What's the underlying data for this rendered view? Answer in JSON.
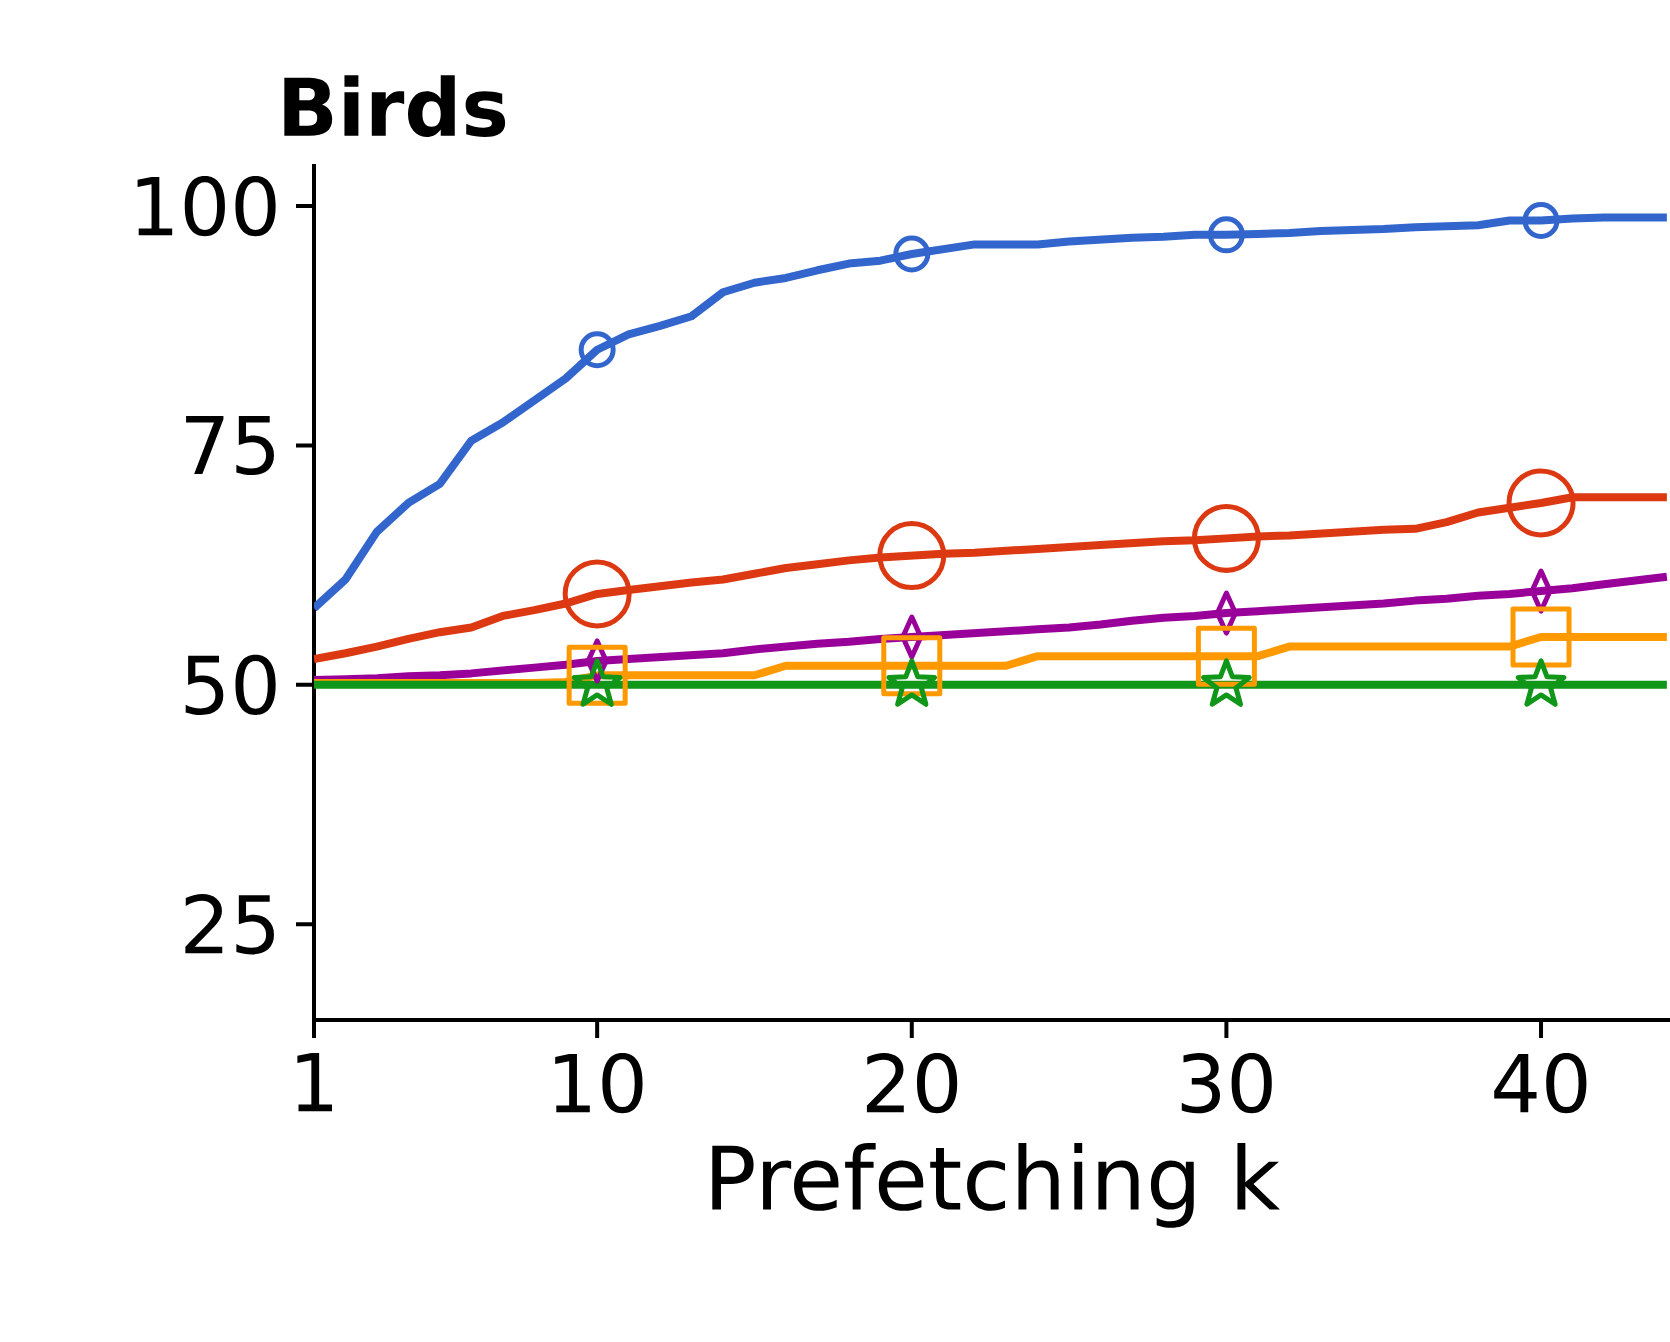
{
  "chart_data": {
    "type": "line",
    "title": "Birds",
    "xlabel": "Prefetching k",
    "x": [
      1,
      2,
      3,
      4,
      5,
      6,
      7,
      8,
      9,
      10,
      11,
      12,
      13,
      14,
      15,
      16,
      17,
      18,
      19,
      20,
      21,
      22,
      23,
      24,
      25,
      26,
      27,
      28,
      29,
      30,
      31,
      32,
      33,
      34,
      35,
      36,
      37,
      38,
      39,
      40,
      41,
      42,
      43,
      44
    ],
    "xlim": [
      1,
      44.1
    ],
    "xticks": [
      1,
      10,
      20,
      30,
      40
    ],
    "ylim": [
      15,
      104.4
    ],
    "yticks": [
      25,
      50,
      75,
      100
    ],
    "grid": false,
    "line_style": "solid",
    "series": [
      {
        "color": "#3366cc",
        "values": [
          58,
          61,
          66,
          69,
          71,
          75.5,
          77.4,
          79.7,
          82,
          85,
          86.6,
          87.5,
          88.5,
          91,
          92,
          92.5,
          93.3,
          94,
          94.3,
          95,
          95.5,
          96,
          96,
          96,
          96.3,
          96.5,
          96.7,
          96.8,
          97,
          97,
          97.1,
          97.2,
          97.4,
          97.5,
          97.6,
          97.8,
          97.9,
          98,
          98.5,
          98.5,
          98.7,
          98.8,
          98.8,
          98.8
        ]
      },
      {
        "color": "#dc3912",
        "values": [
          52.7,
          53.3,
          54,
          54.8,
          55.5,
          56,
          57.2,
          57.8,
          58.5,
          59.5,
          59.9,
          60.3,
          60.7,
          61,
          61.6,
          62.2,
          62.6,
          63,
          63.3,
          63.5,
          63.7,
          63.8,
          64,
          64.2,
          64.4,
          64.6,
          64.8,
          65,
          65.1,
          65.3,
          65.5,
          65.6,
          65.8,
          66,
          66.2,
          66.3,
          67,
          68,
          68.5,
          69,
          69.6,
          69.6,
          69.6,
          69.6
        ]
      },
      {
        "color": "#990099",
        "values": [
          50.5,
          50.6,
          50.7,
          50.9,
          51,
          51.2,
          51.5,
          51.8,
          52.1,
          52.5,
          52.7,
          52.9,
          53.1,
          53.3,
          53.7,
          54,
          54.3,
          54.5,
          54.8,
          55,
          55.2,
          55.4,
          55.6,
          55.8,
          56,
          56.3,
          56.7,
          57,
          57.2,
          57.5,
          57.7,
          57.9,
          58.1,
          58.3,
          58.5,
          58.8,
          59,
          59.3,
          59.5,
          59.8,
          60.1,
          60.5,
          60.9,
          61.3
        ]
      },
      {
        "color": "#ff9900",
        "values": [
          50.2,
          50.2,
          50.2,
          50.2,
          50.2,
          50.2,
          50.2,
          50.2,
          50.3,
          51,
          51,
          51,
          51,
          51,
          51,
          52,
          52,
          52,
          52,
          52,
          52,
          52,
          52,
          53,
          53,
          53,
          53,
          53,
          53,
          53,
          53,
          54,
          54,
          54,
          54,
          54,
          54,
          54,
          54,
          55,
          55,
          55,
          55,
          55
        ]
      },
      {
        "color": "#109618",
        "values": [
          50,
          50,
          50,
          50,
          50,
          50,
          50,
          50,
          50,
          50,
          50,
          50,
          50,
          50,
          50,
          50,
          50,
          50,
          50,
          50,
          50,
          50,
          50,
          50,
          50,
          50,
          50,
          50,
          50,
          50,
          50,
          50,
          50,
          50,
          50,
          50,
          50,
          50,
          50,
          50,
          50,
          50,
          50,
          50
        ]
      },
      {
        "type": "scatter",
        "color": "#3366cc",
        "marker": "circle",
        "x": [
          10,
          20,
          30,
          40
        ],
        "values": [
          85,
          95,
          97,
          98.5
        ]
      },
      {
        "type": "scatter",
        "color": "#dc3912",
        "marker": "circle",
        "x": [
          10,
          20,
          30,
          40
        ],
        "values": [
          59.5,
          63.5,
          65.3,
          69
        ]
      },
      {
        "type": "scatter",
        "color": "#990099",
        "marker": "diamond",
        "x": [
          10,
          20,
          30,
          40
        ],
        "values": [
          52.5,
          55,
          57.5,
          59.8
        ]
      },
      {
        "type": "scatter",
        "color": "#ff9900",
        "marker": "square",
        "x": [
          10,
          20,
          30,
          40
        ],
        "values": [
          51,
          52,
          53,
          55
        ]
      },
      {
        "type": "scatter",
        "color": "#109618",
        "marker": "star",
        "x": [
          10,
          20,
          30,
          40
        ],
        "values": [
          50,
          50,
          50,
          50
        ]
      }
    ]
  }
}
